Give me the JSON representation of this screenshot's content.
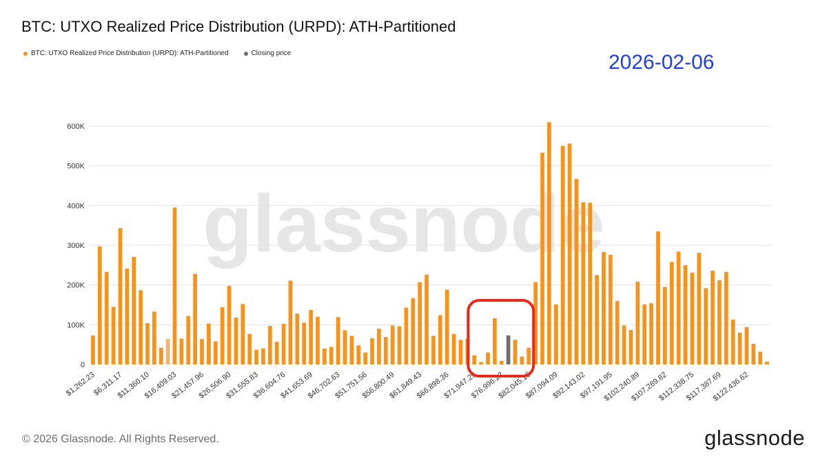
{
  "header": {
    "title": "BTC: UTXO Realized Price Distribution (URPD): ATH-Partitioned",
    "date_stamp": "2026-02-06"
  },
  "footer": {
    "copyright": "© 2026 Glassnode. All Rights Reserved.",
    "logo_text": "glassnode"
  },
  "watermark": "glassnode",
  "colors": {
    "bar": "#F7931A",
    "bar_light": "#F6B26B",
    "closing": "#707070",
    "date_stamp": "#1F3FE0",
    "highlight_box": "#E8291C"
  },
  "chart_data": {
    "type": "bar",
    "title": "BTC: UTXO Realized Price Distribution (URPD): ATH-Partitioned",
    "legend": [
      {
        "name": "BTC: UTXO Realized Price Distribution (URPD): ATH-Partitioned",
        "color": "#F7931A"
      },
      {
        "name": "Closing price",
        "color": "#707070"
      }
    ],
    "legend_position": "top-left",
    "grid": true,
    "ylim": [
      0,
      620000
    ],
    "y_ticks": [
      0,
      100000,
      200000,
      300000,
      400000,
      500000,
      600000
    ],
    "y_tick_labels": [
      "0",
      "100K",
      "200K",
      "300K",
      "400K",
      "500K",
      "600K"
    ],
    "x_tick_labels": [
      "$1,262.23",
      "$6,311.17",
      "$11,360.10",
      "$16,409.03",
      "$21,457.96",
      "$26,506.90",
      "$31,555.83",
      "$36,604.76",
      "$41,653.69",
      "$46,702.63",
      "$51,751.56",
      "$56,800.49",
      "$61,849.43",
      "$66,898.36",
      "$71,947.29",
      "$76,996.22",
      "$82,045.16",
      "$87,094.09",
      "$92,143.02",
      "$97,191.95",
      "$102,240.89",
      "$107,289.82",
      "$112,338.75",
      "$117,387.69",
      "$122,436.62"
    ],
    "x_tick_every": 4,
    "values": [
      73000,
      297000,
      233000,
      145000,
      343000,
      241000,
      271000,
      187000,
      104000,
      133000,
      42000,
      64000,
      395000,
      65000,
      122000,
      228000,
      64000,
      103000,
      58000,
      144000,
      198000,
      118000,
      152000,
      77000,
      37000,
      40000,
      97000,
      57000,
      102000,
      211000,
      128000,
      105000,
      137000,
      120000,
      40000,
      44000,
      119000,
      86000,
      72000,
      48000,
      30000,
      66000,
      90000,
      69000,
      98000,
      96000,
      143000,
      167000,
      207000,
      226000,
      72000,
      124000,
      188000,
      77000,
      62000,
      65000,
      23000,
      6000,
      30000,
      116000,
      9000,
      73000,
      62000,
      20000,
      42000,
      207000,
      533000,
      610000,
      151000,
      550000,
      556000,
      467000,
      408000,
      407000,
      225000,
      283000,
      276000,
      160000,
      98000,
      87000,
      208000,
      151000,
      154000,
      335000,
      195000,
      258000,
      284000,
      250000,
      231000,
      281000,
      192000,
      236000,
      212000,
      233000,
      113000,
      80000,
      94000,
      52000,
      32000,
      7000
    ],
    "light_bar_indices": [
      11
    ],
    "closing_price_index": 61,
    "highlight_range": [
      56,
      64
    ]
  }
}
